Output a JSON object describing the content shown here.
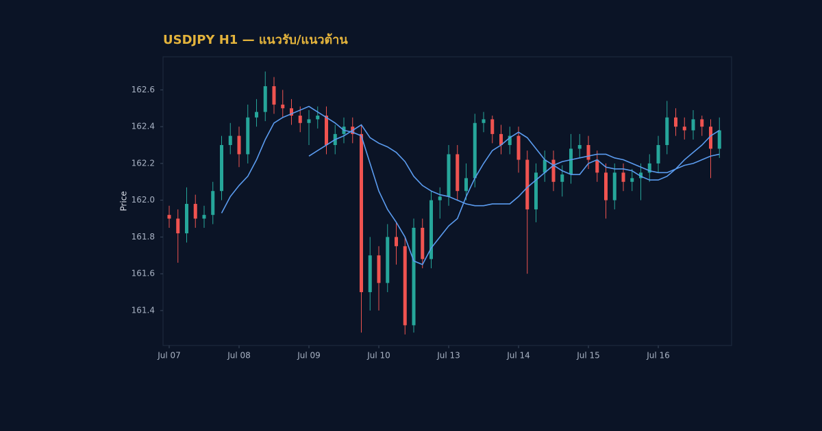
{
  "chart_data": {
    "type": "candlestick",
    "title": "USDJPY H1 — แนวรับ/แนวต้าน",
    "ylabel": "Price",
    "categories": [
      "Jul 07",
      null,
      null,
      null,
      null,
      null,
      null,
      null,
      "Jul 08",
      null,
      null,
      null,
      null,
      null,
      null,
      null,
      "Jul 09",
      null,
      null,
      null,
      null,
      null,
      null,
      null,
      "Jul 10",
      null,
      null,
      null,
      null,
      null,
      null,
      null,
      "Jul 13",
      null,
      null,
      null,
      null,
      null,
      null,
      null,
      "Jul 14",
      null,
      null,
      null,
      null,
      null,
      null,
      null,
      "Jul 15",
      null,
      null,
      null,
      null,
      null,
      null,
      null,
      "Jul 16",
      null,
      null,
      null,
      null,
      null,
      null,
      null
    ],
    "open": [
      161.92,
      161.9,
      161.82,
      161.98,
      161.9,
      161.92,
      162.05,
      162.3,
      162.35,
      162.25,
      162.45,
      162.48,
      162.62,
      162.52,
      162.5,
      162.46,
      162.42,
      162.44,
      162.46,
      162.3,
      162.36,
      162.4,
      162.36,
      161.5,
      161.7,
      161.55,
      161.8,
      161.75,
      161.32,
      161.85,
      161.68,
      162.0,
      162.02,
      162.25,
      162.05,
      162.12,
      162.42,
      162.44,
      162.36,
      162.3,
      162.35,
      162.22,
      161.95,
      162.15,
      162.22,
      162.1,
      162.14,
      162.28,
      162.3,
      162.22,
      162.15,
      162.0,
      162.15,
      162.1,
      162.12,
      162.15,
      162.2,
      162.3,
      162.45,
      162.4,
      162.38,
      162.44,
      162.4,
      162.28
    ],
    "high": [
      161.97,
      161.95,
      162.07,
      162.03,
      161.97,
      162.1,
      162.35,
      162.42,
      162.4,
      162.52,
      162.55,
      162.7,
      162.67,
      162.6,
      162.55,
      162.51,
      162.49,
      162.51,
      162.51,
      162.41,
      162.45,
      162.45,
      162.41,
      161.8,
      161.75,
      161.87,
      161.88,
      161.8,
      161.9,
      161.9,
      162.05,
      162.07,
      162.3,
      162.3,
      162.2,
      162.47,
      162.48,
      162.46,
      162.41,
      162.4,
      162.4,
      162.27,
      162.2,
      162.27,
      162.27,
      162.19,
      162.36,
      162.36,
      162.35,
      162.27,
      162.2,
      162.2,
      162.2,
      162.17,
      162.2,
      162.25,
      162.35,
      162.54,
      162.5,
      162.45,
      162.49,
      162.46,
      162.44,
      162.45
    ],
    "low": [
      161.85,
      161.66,
      161.77,
      161.85,
      161.85,
      161.87,
      162.0,
      162.25,
      162.18,
      162.2,
      162.4,
      162.43,
      162.47,
      162.45,
      162.41,
      162.37,
      162.3,
      162.39,
      162.25,
      162.25,
      162.31,
      162.31,
      161.28,
      161.4,
      161.4,
      161.5,
      161.65,
      161.27,
      161.28,
      161.63,
      161.63,
      161.9,
      161.97,
      162.0,
      162.0,
      162.07,
      162.37,
      162.31,
      162.25,
      162.25,
      162.15,
      161.6,
      161.88,
      162.1,
      162.05,
      162.02,
      162.09,
      162.23,
      162.17,
      162.1,
      161.9,
      161.95,
      162.05,
      162.05,
      162.0,
      162.1,
      162.15,
      162.25,
      162.35,
      162.33,
      162.33,
      162.35,
      162.12,
      162.23
    ],
    "close": [
      161.9,
      161.82,
      161.98,
      161.9,
      161.92,
      162.05,
      162.3,
      162.35,
      162.25,
      162.45,
      162.48,
      162.62,
      162.52,
      162.5,
      162.46,
      162.42,
      162.44,
      162.46,
      162.3,
      162.36,
      162.4,
      162.36,
      161.5,
      161.7,
      161.55,
      161.8,
      161.75,
      161.32,
      161.85,
      161.68,
      162.0,
      162.02,
      162.25,
      162.05,
      162.12,
      162.42,
      162.44,
      162.36,
      162.3,
      162.35,
      162.22,
      161.95,
      162.15,
      162.22,
      162.1,
      162.14,
      162.28,
      162.3,
      162.22,
      162.15,
      162.0,
      162.15,
      162.1,
      162.12,
      162.15,
      162.2,
      162.3,
      162.45,
      162.4,
      162.38,
      162.44,
      162.4,
      162.28,
      162.38
    ],
    "up_color": "#26a69a",
    "down_color": "#ef5350",
    "lines": [
      {
        "color": "#5b9cf0",
        "values": [
          null,
          null,
          null,
          null,
          null,
          null,
          161.93,
          162.02,
          162.08,
          162.13,
          162.22,
          162.33,
          162.42,
          162.45,
          162.47,
          162.49,
          162.51,
          162.48,
          162.45,
          162.42,
          162.38,
          162.37,
          162.35,
          162.2,
          162.05,
          161.95,
          161.88,
          161.8,
          161.67,
          161.65,
          161.74,
          161.8,
          161.86,
          161.9,
          162.02,
          162.12,
          162.2,
          162.27,
          162.3,
          162.34,
          162.37,
          162.34,
          162.28,
          162.22,
          162.19,
          162.16,
          162.14,
          162.14,
          162.2,
          162.22,
          162.18,
          162.17,
          162.17,
          162.16,
          162.13,
          162.11,
          162.11,
          162.13,
          162.17,
          162.22,
          162.26,
          162.3,
          162.35,
          162.38
        ]
      },
      {
        "color": "#5b9cf0",
        "values": [
          null,
          null,
          null,
          null,
          null,
          null,
          null,
          null,
          null,
          null,
          null,
          null,
          null,
          null,
          null,
          null,
          162.24,
          162.27,
          162.3,
          162.33,
          162.35,
          162.38,
          162.41,
          162.34,
          162.31,
          162.29,
          162.26,
          162.21,
          162.13,
          162.08,
          162.05,
          162.03,
          162.02,
          162.0,
          161.98,
          161.97,
          161.97,
          161.98,
          161.98,
          161.98,
          162.02,
          162.07,
          162.11,
          162.15,
          162.19,
          162.21,
          162.22,
          162.23,
          162.24,
          162.25,
          162.25,
          162.23,
          162.22,
          162.2,
          162.18,
          162.16,
          162.15,
          162.15,
          162.17,
          162.19,
          162.2,
          162.22,
          162.24,
          162.25
        ]
      }
    ],
    "ylim": [
      161.21,
      162.78
    ],
    "yticks": [
      161.4,
      161.6,
      161.8,
      {
        "value": 162,
        "label": "162.0"
      },
      162.2,
      162.4,
      162.6
    ]
  }
}
